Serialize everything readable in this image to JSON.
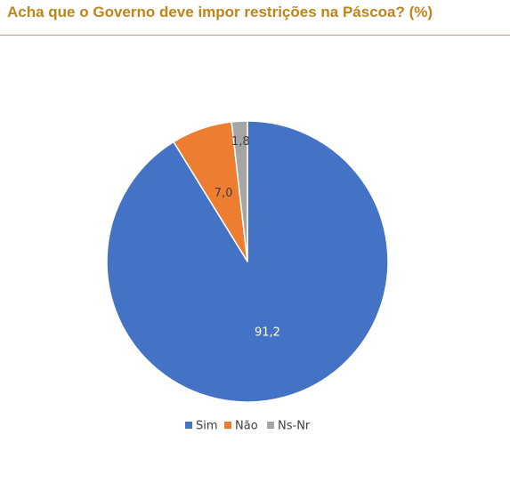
{
  "title": "Acha  que o Governo deve impor restrições na Páscoa? (%)",
  "colors": {
    "title": "#c0841a",
    "title_rule": "#d6a33c"
  },
  "chart_data": {
    "type": "pie",
    "title": "Acha  que o Governo deve impor restrições na Páscoa? (%)",
    "categories": [
      "Sim",
      "Não",
      "Ns-Nr"
    ],
    "values": [
      91.2,
      7.0,
      1.8
    ],
    "data_labels": [
      "91,2",
      "7,0",
      "1,8"
    ],
    "colors": [
      "#4472c4",
      "#ed7d31",
      "#a5a5a5"
    ],
    "label_colors": [
      "#ffffff",
      "#404040",
      "#404040"
    ],
    "start_angle": "12 o'clock",
    "direction": "clockwise",
    "legend": {
      "position": "bottom",
      "entries": [
        "Sim",
        "Não",
        "Ns-Nr"
      ]
    }
  }
}
